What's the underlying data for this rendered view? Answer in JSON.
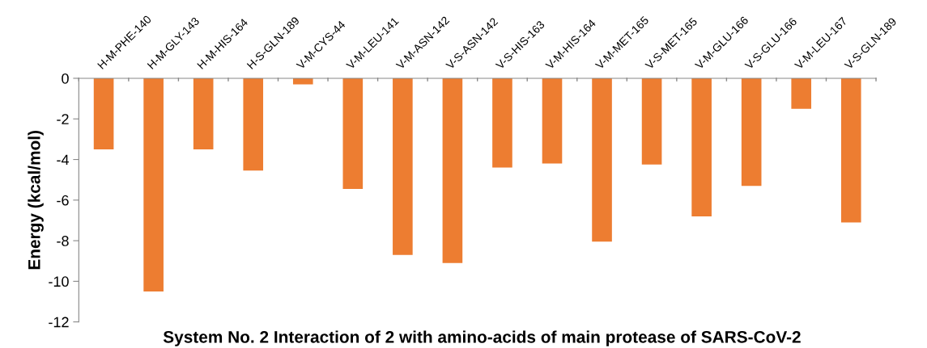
{
  "chart_data": {
    "type": "bar",
    "title": "System No. 2 Interaction of 2 with amino-acids of main protease of SARS-CoV-2",
    "ylabel": "Energy (kcal/mol)",
    "categories": [
      "H-M-PHE-140",
      "H-M-GLY-143",
      "H-M-HIS-164",
      "H-S-GLN-189",
      "V-M-CYS-44",
      "V-M-LEU-141",
      "V-M-ASN-142",
      "V-S-ASN-142",
      "V-S-HIS-163",
      "V-M-HIS-164",
      "V-M-MET-165",
      "V-S-MET-165",
      "V-M-GLU-166",
      "V-S-GLU-166",
      "V-M-LEU-167",
      "V-S-GLN-189"
    ],
    "values": [
      -3.5,
      -10.5,
      -3.5,
      -4.55,
      -0.3,
      -5.45,
      -8.7,
      -9.1,
      -4.4,
      -4.2,
      -8.05,
      -4.25,
      -6.8,
      -5.3,
      -1.5,
      -7.1
    ],
    "color": "#ed7d31",
    "ylim": [
      -12,
      0
    ],
    "yticks": [
      -12,
      -10,
      -8,
      -6,
      -4,
      -2,
      0
    ],
    "grid": false,
    "legend": false
  }
}
